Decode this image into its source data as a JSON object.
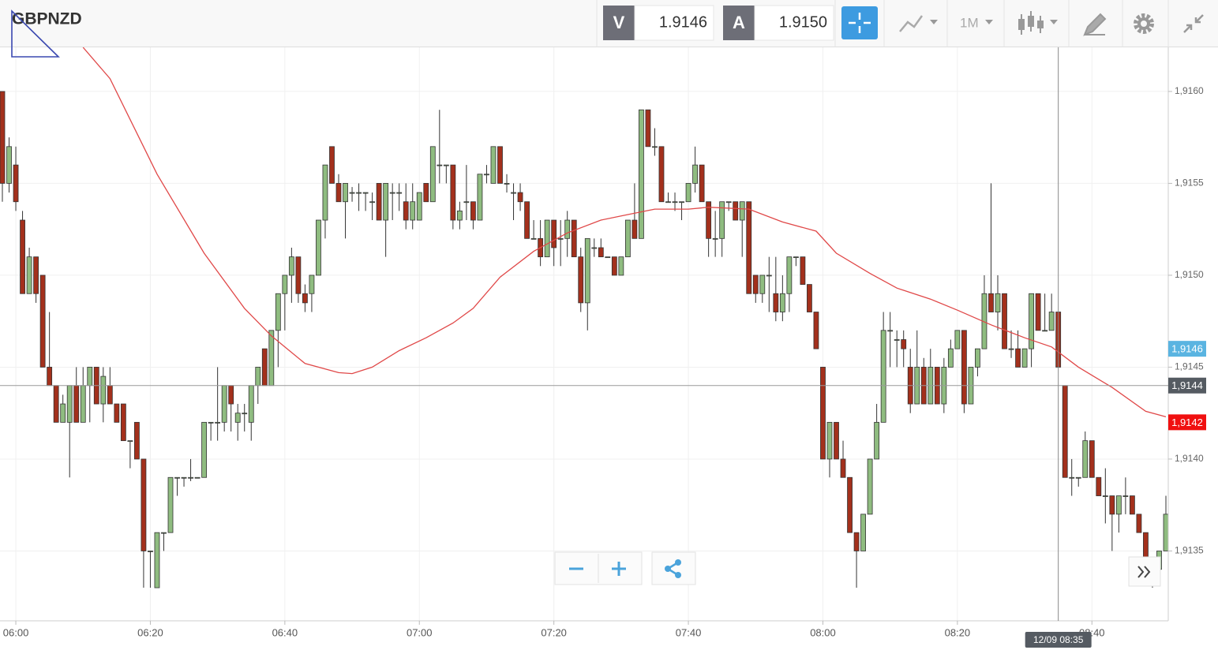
{
  "chart_data": {
    "type": "candlestick",
    "symbol": "GBPNZD",
    "toolbar": {
      "bid_label": "V",
      "bid": "1.9146",
      "ask_label": "A",
      "ask": "1.9150",
      "period": "1M"
    },
    "up_color": "#8fbc80",
    "down_color": "#a3301c",
    "ylim": [
      1.91312,
      1.91624
    ],
    "yticks": [
      {
        "value": 1.9135,
        "label": "1,9135"
      },
      {
        "value": 1.914,
        "label": "1,9140"
      },
      {
        "value": 1.9145,
        "label": "1,9145"
      },
      {
        "value": 1.915,
        "label": "1,9150"
      },
      {
        "value": 1.9155,
        "label": "1,9155"
      },
      {
        "value": 1.916,
        "label": "1,9160"
      }
    ],
    "xlim": [
      "05:58",
      "08:51"
    ],
    "xticks": [
      "06:00",
      "06:20",
      "06:40",
      "07:00",
      "07:20",
      "07:40",
      "08:00",
      "08:20",
      "08:40"
    ],
    "grid": true,
    "x": [
      "05:58",
      "05:59",
      "06:00",
      "06:01",
      "06:02",
      "06:03",
      "06:04",
      "06:05",
      "06:06",
      "06:07",
      "06:08",
      "06:09",
      "06:10",
      "06:11",
      "06:12",
      "06:13",
      "06:14",
      "06:15",
      "06:16",
      "06:17",
      "06:18",
      "06:19",
      "06:20",
      "06:21",
      "06:22",
      "06:23",
      "06:24",
      "06:25",
      "06:26",
      "06:27",
      "06:28",
      "06:29",
      "06:30",
      "06:31",
      "06:32",
      "06:33",
      "06:34",
      "06:35",
      "06:36",
      "06:37",
      "06:38",
      "06:39",
      "06:40",
      "06:41",
      "06:42",
      "06:43",
      "06:44",
      "06:45",
      "06:46",
      "06:47",
      "06:48",
      "06:49",
      "06:50",
      "06:51",
      "06:52",
      "06:53",
      "06:54",
      "06:55",
      "06:56",
      "06:57",
      "06:58",
      "06:59",
      "07:00",
      "07:01",
      "07:02",
      "07:03",
      "07:04",
      "07:05",
      "07:06",
      "07:07",
      "07:08",
      "07:09",
      "07:10",
      "07:11",
      "07:12",
      "07:13",
      "07:14",
      "07:15",
      "07:16",
      "07:17",
      "07:18",
      "07:19",
      "07:20",
      "07:21",
      "07:22",
      "07:23",
      "07:24",
      "07:25",
      "07:26",
      "07:27",
      "07:28",
      "07:29",
      "07:30",
      "07:31",
      "07:32",
      "07:33",
      "07:34",
      "07:35",
      "07:36",
      "07:37",
      "07:38",
      "07:39",
      "07:40",
      "07:41",
      "07:42",
      "07:43",
      "07:44",
      "07:45",
      "07:46",
      "07:47",
      "07:48",
      "07:49",
      "07:50",
      "07:51",
      "07:52",
      "07:53",
      "07:54",
      "07:55",
      "07:56",
      "07:57",
      "07:58",
      "07:59",
      "08:00",
      "08:01",
      "08:02",
      "08:03",
      "08:04",
      "08:05",
      "08:06",
      "08:07",
      "08:08",
      "08:09",
      "08:10",
      "08:11",
      "08:12",
      "08:13",
      "08:14",
      "08:15",
      "08:16",
      "08:17",
      "08:18",
      "08:19",
      "08:20",
      "08:21",
      "08:22",
      "08:23",
      "08:24",
      "08:25",
      "08:26",
      "08:27",
      "08:28",
      "08:29",
      "08:30",
      "08:31",
      "08:32",
      "08:33",
      "08:34",
      "08:35",
      "08:36",
      "08:37",
      "08:38",
      "08:39",
      "08:40",
      "08:41",
      "08:42",
      "08:43",
      "08:44",
      "08:45",
      "08:46",
      "08:47",
      "08:48",
      "08:49",
      "08:50",
      "08:51"
    ],
    "candles": [
      [
        1.916,
        1.916,
        1.9154,
        1.9155
      ],
      [
        1.9155,
        1.91575,
        1.91545,
        1.9157
      ],
      [
        1.9156,
        1.9157,
        1.91535,
        1.9154
      ],
      [
        1.9153,
        1.91535,
        1.9149,
        1.9149
      ],
      [
        1.9149,
        1.91515,
        1.9149,
        1.9151
      ],
      [
        1.9151,
        1.9151,
        1.91485,
        1.9149
      ],
      [
        1.915,
        1.915,
        1.9145,
        1.9145
      ],
      [
        1.9145,
        1.9148,
        1.9144,
        1.9144
      ],
      [
        1.9144,
        1.9144,
        1.9142,
        1.9142
      ],
      [
        1.9142,
        1.91435,
        1.9142,
        1.9143
      ],
      [
        1.9142,
        1.9144,
        1.9139,
        1.9144
      ],
      [
        1.9144,
        1.9145,
        1.9142,
        1.9142
      ],
      [
        1.9142,
        1.9145,
        1.9142,
        1.9144
      ],
      [
        1.9144,
        1.9145,
        1.9142,
        1.9145
      ],
      [
        1.9145,
        1.9145,
        1.9143,
        1.9143
      ],
      [
        1.9143,
        1.9145,
        1.9142,
        1.91445
      ],
      [
        1.9144,
        1.9145,
        1.9143,
        1.9143
      ],
      [
        1.9143,
        1.9143,
        1.9142,
        1.9142
      ],
      [
        1.9143,
        1.9143,
        1.9141,
        1.9141
      ],
      [
        1.9141,
        1.9141,
        1.91395,
        1.9141
      ],
      [
        1.9142,
        1.9142,
        1.914,
        1.914
      ],
      [
        1.914,
        1.914,
        1.9133,
        1.9135
      ],
      [
        1.9135,
        1.9135,
        1.9133,
        1.9135
      ],
      [
        1.9133,
        1.9136,
        1.9133,
        1.9136
      ],
      [
        1.9136,
        1.9136,
        1.9135,
        1.9136
      ],
      [
        1.9136,
        1.9139,
        1.9136,
        1.9139
      ],
      [
        1.9139,
        1.9139,
        1.9138,
        1.9139
      ],
      [
        1.9139,
        1.9139,
        1.91385,
        1.9139
      ],
      [
        1.9139,
        1.914,
        1.91388,
        1.9139
      ],
      [
        1.9139,
        1.9139,
        1.9139,
        1.9139
      ],
      [
        1.9139,
        1.9142,
        1.9139,
        1.9142
      ],
      [
        1.9142,
        1.9142,
        1.9141,
        1.9142
      ],
      [
        1.9142,
        1.9145,
        1.9141,
        1.9142
      ],
      [
        1.9142,
        1.9144,
        1.91415,
        1.9144
      ],
      [
        1.9144,
        1.9144,
        1.91415,
        1.9143
      ],
      [
        1.9142,
        1.9143,
        1.9141,
        1.91425
      ],
      [
        1.91425,
        1.9143,
        1.91415,
        1.91425
      ],
      [
        1.9142,
        1.9144,
        1.9141,
        1.9144
      ],
      [
        1.9144,
        1.9145,
        1.9143,
        1.9145
      ],
      [
        1.9146,
        1.9146,
        1.9144,
        1.9144
      ],
      [
        1.9144,
        1.9147,
        1.9144,
        1.9147
      ],
      [
        1.9147,
        1.9149,
        1.9145,
        1.9149
      ],
      [
        1.9149,
        1.915,
        1.9147,
        1.915
      ],
      [
        1.915,
        1.91515,
        1.91485,
        1.9151
      ],
      [
        1.9151,
        1.9151,
        1.91485,
        1.9149
      ],
      [
        1.9149,
        1.91495,
        1.9148,
        1.91485
      ],
      [
        1.9149,
        1.915,
        1.9148,
        1.915
      ],
      [
        1.915,
        1.9153,
        1.915,
        1.9153
      ],
      [
        1.9153,
        1.9156,
        1.9152,
        1.9156
      ],
      [
        1.9157,
        1.9157,
        1.9155,
        1.9155
      ],
      [
        1.9155,
        1.91555,
        1.9154,
        1.9154
      ],
      [
        1.9154,
        1.9155,
        1.9152,
        1.9155
      ],
      [
        1.91545,
        1.91548,
        1.9154,
        1.91545
      ],
      [
        1.91545,
        1.9155,
        1.91535,
        1.91545
      ],
      [
        1.91545,
        1.91545,
        1.91535,
        1.91545
      ],
      [
        1.9154,
        1.91545,
        1.9153,
        1.9154
      ],
      [
        1.9155,
        1.9155,
        1.9153,
        1.9153
      ],
      [
        1.9153,
        1.9155,
        1.9151,
        1.9155
      ],
      [
        1.91545,
        1.9155,
        1.9153,
        1.91545
      ],
      [
        1.91545,
        1.9155,
        1.91535,
        1.91545
      ],
      [
        1.9154,
        1.9155,
        1.91525,
        1.9153
      ],
      [
        1.9153,
        1.9155,
        1.91525,
        1.9154
      ],
      [
        1.9153,
        1.91545,
        1.9153,
        1.91545
      ],
      [
        1.9155,
        1.9155,
        1.9154,
        1.9154
      ],
      [
        1.9154,
        1.9157,
        1.9154,
        1.9157
      ],
      [
        1.9156,
        1.9159,
        1.9155,
        1.9156
      ],
      [
        1.9156,
        1.9156,
        1.9155,
        1.9156
      ],
      [
        1.9156,
        1.9156,
        1.91525,
        1.9153
      ],
      [
        1.9153,
        1.9154,
        1.91525,
        1.91535
      ],
      [
        1.9154,
        1.9156,
        1.9153,
        1.9154
      ],
      [
        1.9154,
        1.9154,
        1.91525,
        1.9153
      ],
      [
        1.9153,
        1.91555,
        1.9153,
        1.91555
      ],
      [
        1.91555,
        1.9156,
        1.9155,
        1.91555
      ],
      [
        1.9155,
        1.9157,
        1.9155,
        1.9157
      ],
      [
        1.9157,
        1.9157,
        1.9155,
        1.9155
      ],
      [
        1.9155,
        1.91555,
        1.91545,
        1.9155
      ],
      [
        1.91545,
        1.9155,
        1.9153,
        1.91545
      ],
      [
        1.91545,
        1.9155,
        1.91535,
        1.9154
      ],
      [
        1.9154,
        1.9154,
        1.9152,
        1.9152
      ],
      [
        1.9152,
        1.9153,
        1.9152,
        1.9152
      ],
      [
        1.9152,
        1.9153,
        1.91505,
        1.9151
      ],
      [
        1.9151,
        1.9153,
        1.9151,
        1.9153
      ],
      [
        1.9153,
        1.9153,
        1.91505,
        1.91515
      ],
      [
        1.9152,
        1.9153,
        1.91505,
        1.9152
      ],
      [
        1.9152,
        1.91535,
        1.9151,
        1.9153
      ],
      [
        1.9153,
        1.9153,
        1.9151,
        1.9151
      ],
      [
        1.9151,
        1.91515,
        1.9148,
        1.91485
      ],
      [
        1.91485,
        1.9152,
        1.9147,
        1.9152
      ],
      [
        1.91515,
        1.9152,
        1.9151,
        1.91515
      ],
      [
        1.91515,
        1.9152,
        1.9151,
        1.9151
      ],
      [
        1.9151,
        1.9151,
        1.9151,
        1.9151
      ],
      [
        1.9151,
        1.9151,
        1.915,
        1.915
      ],
      [
        1.915,
        1.9151,
        1.915,
        1.9151
      ],
      [
        1.9151,
        1.9153,
        1.9151,
        1.9153
      ],
      [
        1.9153,
        1.9155,
        1.9152,
        1.9152
      ],
      [
        1.9152,
        1.9159,
        1.9152,
        1.9159
      ],
      [
        1.9159,
        1.9159,
        1.9157,
        1.9157
      ],
      [
        1.9157,
        1.9158,
        1.91565,
        1.9157
      ],
      [
        1.9157,
        1.9157,
        1.9154,
        1.9154
      ],
      [
        1.9154,
        1.91545,
        1.9154,
        1.9154
      ],
      [
        1.9154,
        1.91545,
        1.91535,
        1.9154
      ],
      [
        1.9154,
        1.9154,
        1.9153,
        1.9154
      ],
      [
        1.9154,
        1.9155,
        1.9154,
        1.9155
      ],
      [
        1.9155,
        1.9157,
        1.91545,
        1.9156
      ],
      [
        1.9156,
        1.9156,
        1.9154,
        1.9154
      ],
      [
        1.9154,
        1.9154,
        1.9151,
        1.9152
      ],
      [
        1.9152,
        1.91535,
        1.9151,
        1.9152
      ],
      [
        1.9152,
        1.9154,
        1.9151,
        1.9154
      ],
      [
        1.9154,
        1.9154,
        1.91535,
        1.9154
      ],
      [
        1.9154,
        1.9154,
        1.9153,
        1.9153
      ],
      [
        1.9153,
        1.9154,
        1.9151,
        1.9154
      ],
      [
        1.9154,
        1.9154,
        1.9149,
        1.9149
      ],
      [
        1.915,
        1.915,
        1.91485,
        1.9149
      ],
      [
        1.9149,
        1.915,
        1.91485,
        1.915
      ],
      [
        1.915,
        1.9151,
        1.9148,
        1.915
      ],
      [
        1.9149,
        1.9151,
        1.91475,
        1.9148
      ],
      [
        1.9148,
        1.915,
        1.91475,
        1.9149
      ],
      [
        1.9149,
        1.9151,
        1.9148,
        1.9151
      ],
      [
        1.9151,
        1.9151,
        1.91505,
        1.9151
      ],
      [
        1.9151,
        1.9151,
        1.91495,
        1.91495
      ],
      [
        1.91495,
        1.91495,
        1.9148,
        1.9148
      ],
      [
        1.9148,
        1.9148,
        1.9146,
        1.9146
      ],
      [
        1.9145,
        1.9145,
        1.914,
        1.914
      ],
      [
        1.914,
        1.9142,
        1.9139,
        1.9142
      ],
      [
        1.9142,
        1.9142,
        1.914,
        1.914
      ],
      [
        1.914,
        1.9141,
        1.9139,
        1.9139
      ],
      [
        1.9139,
        1.9139,
        1.9136,
        1.9136
      ],
      [
        1.9136,
        1.9136,
        1.9133,
        1.9135
      ],
      [
        1.9135,
        1.9137,
        1.9135,
        1.9137
      ],
      [
        1.9137,
        1.914,
        1.9137,
        1.914
      ],
      [
        1.914,
        1.9143,
        1.914,
        1.9142
      ],
      [
        1.9142,
        1.9148,
        1.9142,
        1.9147
      ],
      [
        1.9147,
        1.9148,
        1.9145,
        1.9147
      ],
      [
        1.91465,
        1.9147,
        1.9145,
        1.91465
      ],
      [
        1.91465,
        1.9147,
        1.9145,
        1.9146
      ],
      [
        1.9145,
        1.9146,
        1.91425,
        1.9143
      ],
      [
        1.9143,
        1.9147,
        1.9143,
        1.9145
      ],
      [
        1.9145,
        1.91455,
        1.9143,
        1.9143
      ],
      [
        1.9143,
        1.9146,
        1.9143,
        1.9145
      ],
      [
        1.9145,
        1.9145,
        1.9143,
        1.9143
      ],
      [
        1.9143,
        1.91455,
        1.91425,
        1.9145
      ],
      [
        1.9145,
        1.91465,
        1.9145,
        1.9146
      ],
      [
        1.9146,
        1.9147,
        1.9146,
        1.9147
      ],
      [
        1.9147,
        1.9147,
        1.91425,
        1.9143
      ],
      [
        1.9143,
        1.9145,
        1.9143,
        1.9145
      ],
      [
        1.9145,
        1.9146,
        1.91445,
        1.9146
      ],
      [
        1.9146,
        1.915,
        1.9146,
        1.9149
      ],
      [
        1.9149,
        1.9155,
        1.9148,
        1.9148
      ],
      [
        1.9148,
        1.915,
        1.9147,
        1.9149
      ],
      [
        1.9149,
        1.9149,
        1.9146,
        1.9146
      ],
      [
        1.9146,
        1.9147,
        1.91455,
        1.9146
      ],
      [
        1.9146,
        1.9147,
        1.9145,
        1.9145
      ],
      [
        1.9145,
        1.9146,
        1.9145,
        1.9146
      ],
      [
        1.9146,
        1.9149,
        1.9145,
        1.9149
      ],
      [
        1.9149,
        1.9149,
        1.9147,
        1.9147
      ],
      [
        1.9147,
        1.9149,
        1.9147,
        1.9147
      ],
      [
        1.9147,
        1.9149,
        1.9147,
        1.9148
      ],
      [
        1.9148,
        1.9148,
        1.9145,
        1.9145
      ],
      [
        1.9144,
        1.9144,
        1.9139,
        1.9139
      ],
      [
        1.9139,
        1.914,
        1.9138,
        1.9139
      ],
      [
        1.9139,
        1.9139,
        1.91385,
        1.9139
      ],
      [
        1.9139,
        1.91415,
        1.9139,
        1.9141
      ],
      [
        1.9141,
        1.9141,
        1.9139,
        1.9139
      ],
      [
        1.9139,
        1.9139,
        1.9138,
        1.9138
      ],
      [
        1.9138,
        1.91395,
        1.91365,
        1.9138
      ],
      [
        1.9138,
        1.9138,
        1.9135,
        1.9137
      ],
      [
        1.9137,
        1.9138,
        1.9136,
        1.9138
      ],
      [
        1.9138,
        1.9139,
        1.9137,
        1.9138
      ],
      [
        1.9138,
        1.9138,
        1.9137,
        1.9137
      ],
      [
        1.9137,
        1.9137,
        1.9136,
        1.9136
      ],
      [
        1.9136,
        1.9136,
        1.9134,
        1.9134
      ],
      [
        1.9134,
        1.9134,
        1.9133,
        1.9134
      ],
      [
        1.9134,
        1.9135,
        1.9134,
        1.9135
      ],
      [
        1.9135,
        1.9138,
        1.9135,
        1.9137
      ]
    ],
    "ma": {
      "color": "#e04848",
      "x": [
        "06:10",
        "06:14",
        "06:21",
        "06:28",
        "06:34",
        "06:38",
        "06:43",
        "06:48",
        "06:50",
        "06:53",
        "06:57",
        "07:01",
        "07:05",
        "07:08",
        "07:12",
        "07:17",
        "07:22",
        "07:27",
        "07:31",
        "07:35",
        "07:40",
        "07:43",
        "07:49",
        "07:54",
        "07:59",
        "08:02",
        "08:07",
        "08:11",
        "08:16",
        "08:20",
        "08:25",
        "08:30",
        "08:34",
        "08:38",
        "08:43",
        "08:48",
        "08:51"
      ],
      "values": [
        1.91624,
        1.91607,
        1.91555,
        1.91512,
        1.91482,
        1.91467,
        1.91452,
        1.91447,
        1.914465,
        1.9145,
        1.91459,
        1.91466,
        1.91474,
        1.91482,
        1.91499,
        1.91513,
        1.91523,
        1.9153,
        1.91533,
        1.91536,
        1.91536,
        1.91537,
        1.91536,
        1.91529,
        1.91524,
        1.91512,
        1.91501,
        1.91493,
        1.91487,
        1.91481,
        1.91473,
        1.91466,
        1.91461,
        1.9145,
        1.91439,
        1.91426,
        1.91423
      ]
    },
    "price_markers": [
      {
        "value": 1.9146,
        "label": "1,9146",
        "color": "#5ab4e1"
      },
      {
        "value": 1.9142,
        "label": "1,9142",
        "color": "#f01010"
      }
    ],
    "crosshair": {
      "x": "08:35",
      "x_label": "12/09 08:35",
      "y": 1.9144,
      "y_label": "1,9144",
      "color": "#555b62"
    }
  }
}
